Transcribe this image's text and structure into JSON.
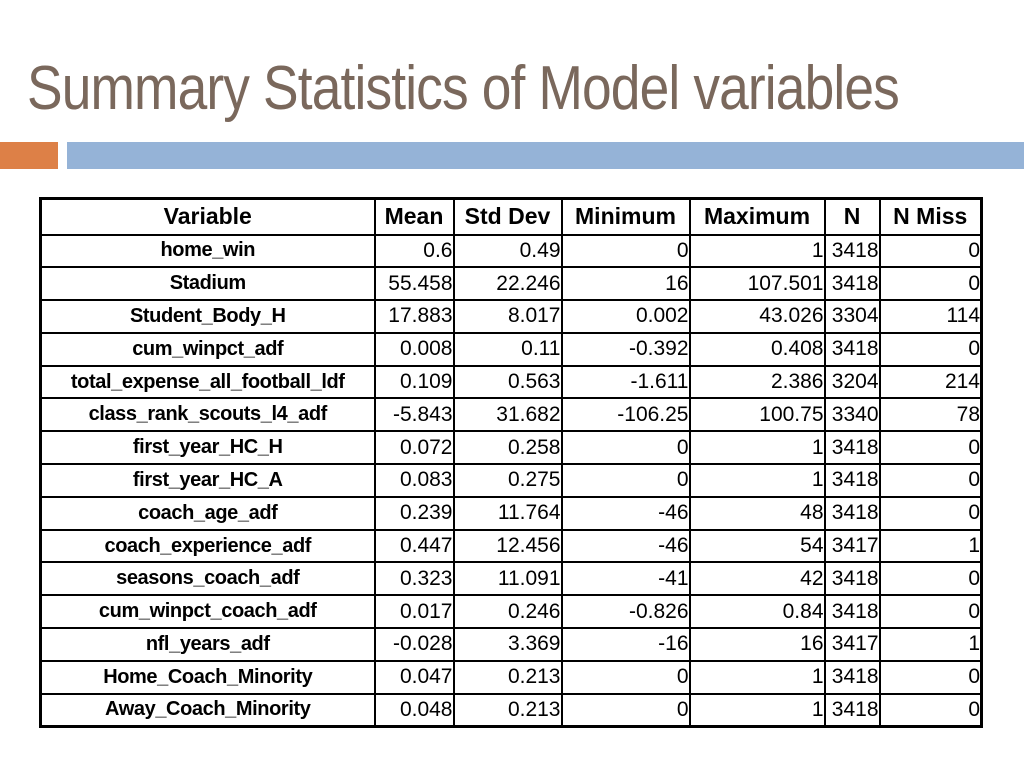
{
  "slide": {
    "title": "Summary Statistics of Model variables",
    "colors": {
      "title_brown": "#7a685c",
      "accent_orange": "#dd8047",
      "accent_blue": "#95b3d7",
      "table_border": "#000000",
      "background": "#ffffff"
    }
  },
  "table": {
    "columns": [
      "Variable",
      "Mean",
      "Std Dev",
      "Minimum",
      "Maximum",
      "N",
      "N Miss"
    ],
    "rows": [
      [
        "home_win",
        "0.6",
        "0.49",
        "0",
        "1",
        "3418",
        "0"
      ],
      [
        "Stadium",
        "55.458",
        "22.246",
        "16",
        "107.501",
        "3418",
        "0"
      ],
      [
        "Student_Body_H",
        "17.883",
        "8.017",
        "0.002",
        "43.026",
        "3304",
        "114"
      ],
      [
        "cum_winpct_adf",
        "0.008",
        "0.11",
        "-0.392",
        "0.408",
        "3418",
        "0"
      ],
      [
        "total_expense_all_football_ldf",
        "0.109",
        "0.563",
        "-1.611",
        "2.386",
        "3204",
        "214"
      ],
      [
        "class_rank_scouts_l4_adf",
        "-5.843",
        "31.682",
        "-106.25",
        "100.75",
        "3340",
        "78"
      ],
      [
        "first_year_HC_H",
        "0.072",
        "0.258",
        "0",
        "1",
        "3418",
        "0"
      ],
      [
        "first_year_HC_A",
        "0.083",
        "0.275",
        "0",
        "1",
        "3418",
        "0"
      ],
      [
        "coach_age_adf",
        "0.239",
        "11.764",
        "-46",
        "48",
        "3418",
        "0"
      ],
      [
        "coach_experience_adf",
        "0.447",
        "12.456",
        "-46",
        "54",
        "3417",
        "1"
      ],
      [
        "seasons_coach_adf",
        "0.323",
        "11.091",
        "-41",
        "42",
        "3418",
        "0"
      ],
      [
        "cum_winpct_coach_adf",
        "0.017",
        "0.246",
        "-0.826",
        "0.84",
        "3418",
        "0"
      ],
      [
        "nfl_years_adf",
        "-0.028",
        "3.369",
        "-16",
        "16",
        "3417",
        "1"
      ],
      [
        "Home_Coach_Minority",
        "0.047",
        "0.213",
        "0",
        "1",
        "3418",
        "0"
      ],
      [
        "Away_Coach_Minority",
        "0.048",
        "0.213",
        "0",
        "1",
        "3418",
        "0"
      ]
    ]
  }
}
